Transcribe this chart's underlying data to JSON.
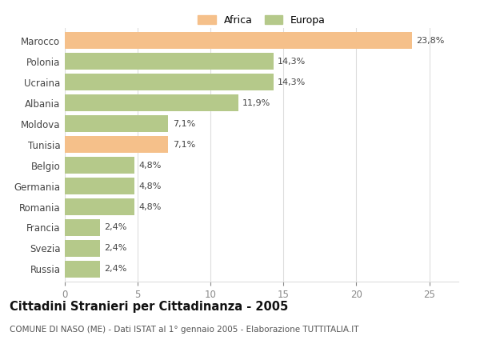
{
  "categories": [
    "Marocco",
    "Polonia",
    "Ucraina",
    "Albania",
    "Moldova",
    "Tunisia",
    "Belgio",
    "Germania",
    "Romania",
    "Francia",
    "Svezia",
    "Russia"
  ],
  "values": [
    23.8,
    14.3,
    14.3,
    11.9,
    7.1,
    7.1,
    4.8,
    4.8,
    4.8,
    2.4,
    2.4,
    2.4
  ],
  "labels": [
    "23,8%",
    "14,3%",
    "14,3%",
    "11,9%",
    "7,1%",
    "7,1%",
    "4,8%",
    "4,8%",
    "4,8%",
    "2,4%",
    "2,4%",
    "2,4%"
  ],
  "continent": [
    "Africa",
    "Europa",
    "Europa",
    "Europa",
    "Europa",
    "Africa",
    "Europa",
    "Europa",
    "Europa",
    "Europa",
    "Europa",
    "Europa"
  ],
  "color_africa": "#F5C08A",
  "color_europa": "#B5C98A",
  "xlim": [
    0,
    27
  ],
  "xticks": [
    0,
    5,
    10,
    15,
    20,
    25
  ],
  "title": "Cittadini Stranieri per Cittadinanza - 2005",
  "subtitle": "COMUNE DI NASO (ME) - Dati ISTAT al 1° gennaio 2005 - Elaborazione TUTTITALIA.IT",
  "legend_africa": "Africa",
  "legend_europa": "Europa",
  "background_color": "#ffffff",
  "grid_color": "#dddddd",
  "bar_height": 0.82,
  "label_fontsize": 8,
  "title_fontsize": 10.5,
  "subtitle_fontsize": 7.5,
  "tick_fontsize": 8.5,
  "ylabel_fontsize": 8.5
}
